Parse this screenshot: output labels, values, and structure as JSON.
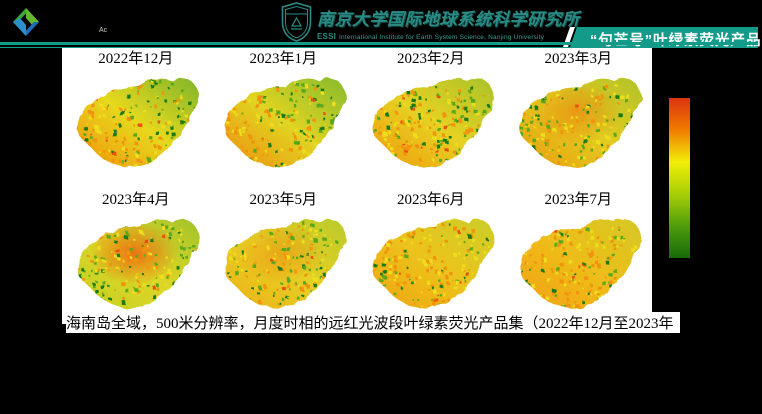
{
  "header": {
    "academy_logo_caption": "Ac",
    "university_name": "南京大学国际地球系统科学研究所",
    "university_subtitle_prefix": "ESSI",
    "university_subtitle": "International Institute for Earth System Science, Nanjing University",
    "banner": "“句芒号”叶绿素荧光产品",
    "accent_color": "#149a88"
  },
  "caption": "海南岛全域，500米分辨率，月度时相的远红光波段叶绿素荧光产品集（2022年12月至2023年",
  "colorbar": {
    "stops": [
      "#dc3310",
      "#f07c00",
      "#f2ee08",
      "#a7cf06",
      "#4f9c0c",
      "#176b0a"
    ]
  },
  "palette": {
    "dg": "#1d7a12",
    "g": "#5aa81c",
    "y": "#eede1e",
    "o": "#f0930c",
    "r": "#e8500e"
  },
  "maps": [
    {
      "label": "2022年12月",
      "pattern": "west-orange",
      "grad": [
        "#f29208",
        "#e6d81e",
        "#7fb52b"
      ],
      "hot": null
    },
    {
      "label": "2023年1月",
      "pattern": "west-orange",
      "grad": [
        "#ef8d0e",
        "#e0d422",
        "#86ba2d"
      ],
      "hot": null
    },
    {
      "label": "2023年2月",
      "pattern": "west-orange",
      "grad": [
        "#f0990e",
        "#e6d122",
        "#a9c22b"
      ],
      "hot": null
    },
    {
      "label": "2023年3月",
      "pattern": "center-hot",
      "grad": [
        "#eb9b10",
        "#e2cb20",
        "#b3c32a"
      ],
      "hot": {
        "color": "#ef6a0a",
        "opacity": 0.5
      }
    },
    {
      "label": "2023年4月",
      "pattern": "center-hot",
      "grad": [
        "#c3d024",
        "#ddd626",
        "#a2c32c"
      ],
      "hot": {
        "color": "#ef5c0c",
        "opacity": 0.8
      }
    },
    {
      "label": "2023年5月",
      "pattern": "center-hot",
      "grad": [
        "#eeb014",
        "#e6d026",
        "#b9ca2a"
      ],
      "hot": {
        "color": "#f07c08",
        "opacity": 0.5
      }
    },
    {
      "label": "2023年6月",
      "pattern": "uniform-warm",
      "grad": [
        "#f0a30e",
        "#ecc31c",
        "#ccce28"
      ],
      "hot": null
    },
    {
      "label": "2023年7月",
      "pattern": "uniform-warm",
      "grad": [
        "#f2a00e",
        "#eebd1a",
        "#d6c824"
      ],
      "hot": null
    }
  ]
}
